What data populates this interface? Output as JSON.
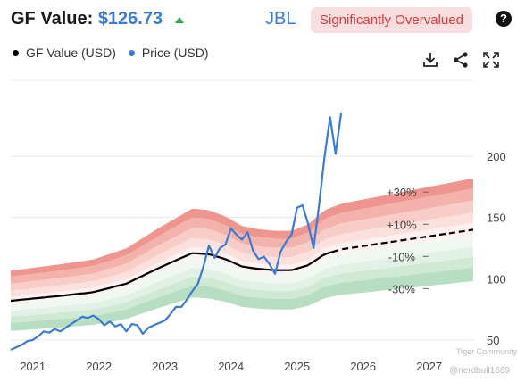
{
  "header": {
    "title_label": "GF Value:",
    "title_value": "$126.73",
    "ticker": "JBL",
    "valuation_badge": "Significantly Overvalued",
    "help_symbol": "?"
  },
  "legend": [
    {
      "label": "GF Value (USD)",
      "color": "#000000"
    },
    {
      "label": "Price (USD)",
      "color": "#3a7bd5"
    }
  ],
  "toolbar": {
    "icons": [
      "download-icon",
      "share-icon",
      "expand-icon"
    ]
  },
  "watermark": {
    "line1": "Tiger Community",
    "line2": "@nerdbull1669"
  },
  "colors": {
    "price": "#3a7bd5",
    "gf_value": "#000000",
    "overvalued_band": "#e9847c",
    "undervalued_band": "#6cc07e",
    "badge_text": "#d93b3b",
    "badge_bg": "#f8dede"
  },
  "chart_data": {
    "type": "line",
    "x_ticks": [
      "2021",
      "2022",
      "2023",
      "2024",
      "2025",
      "2026",
      "2027"
    ],
    "xlim": [
      "2020-09",
      "2027-09"
    ],
    "y_ticks": [
      50,
      100,
      150,
      200
    ],
    "ylim": [
      39,
      262
    ],
    "grid": true,
    "legend_position": "top-left",
    "band_labels": [
      "+30%",
      "+10%",
      "-10%",
      "-30%"
    ],
    "band_multipliers": [
      1.3,
      1.1,
      0.9,
      0.7
    ],
    "gf_value": {
      "name": "GF Value (USD)",
      "x": [
        "2020-09",
        "2021-06",
        "2021-12",
        "2022-06",
        "2022-12",
        "2023-06",
        "2023-09",
        "2023-12",
        "2024-03",
        "2024-06",
        "2024-09",
        "2024-12",
        "2025-03",
        "2025-06",
        "2025-09",
        "2026-06",
        "2027-09"
      ],
      "y": [
        82,
        86,
        89,
        96,
        109,
        121,
        120,
        116,
        110,
        108,
        107,
        107,
        111,
        120,
        124,
        130,
        140
      ],
      "projected_from": "2025-09"
    },
    "price": {
      "name": "Price (USD)",
      "x": [
        "2020-09",
        "2020-10",
        "2020-11",
        "2020-12",
        "2021-01",
        "2021-02",
        "2021-03",
        "2021-04",
        "2021-05",
        "2021-06",
        "2021-07",
        "2021-08",
        "2021-09",
        "2021-10",
        "2021-11",
        "2021-12",
        "2022-01",
        "2022-02",
        "2022-03",
        "2022-04",
        "2022-05",
        "2022-06",
        "2022-07",
        "2022-08",
        "2022-09",
        "2022-10",
        "2022-11",
        "2022-12",
        "2023-01",
        "2023-02",
        "2023-03",
        "2023-04",
        "2023-05",
        "2023-06",
        "2023-07",
        "2023-08",
        "2023-09",
        "2023-10",
        "2023-11",
        "2023-12",
        "2024-01",
        "2024-02",
        "2024-03",
        "2024-04",
        "2024-05",
        "2024-06",
        "2024-07",
        "2024-08",
        "2024-09",
        "2024-10",
        "2024-11",
        "2024-12",
        "2025-01",
        "2025-02",
        "2025-03",
        "2025-04",
        "2025-05",
        "2025-06",
        "2025-07",
        "2025-08",
        "2025-09"
      ],
      "y": [
        42,
        44,
        46,
        49,
        50,
        53,
        57,
        56,
        59,
        57,
        60,
        63,
        66,
        69,
        68,
        70,
        67,
        62,
        65,
        61,
        63,
        57,
        63,
        62,
        55,
        60,
        62,
        64,
        66,
        71,
        77,
        77,
        83,
        90,
        96,
        110,
        127,
        117,
        125,
        128,
        141,
        136,
        132,
        138,
        123,
        116,
        118,
        112,
        104,
        122,
        130,
        136,
        158,
        160,
        145,
        125,
        160,
        200,
        232,
        202,
        235
      ]
    }
  }
}
